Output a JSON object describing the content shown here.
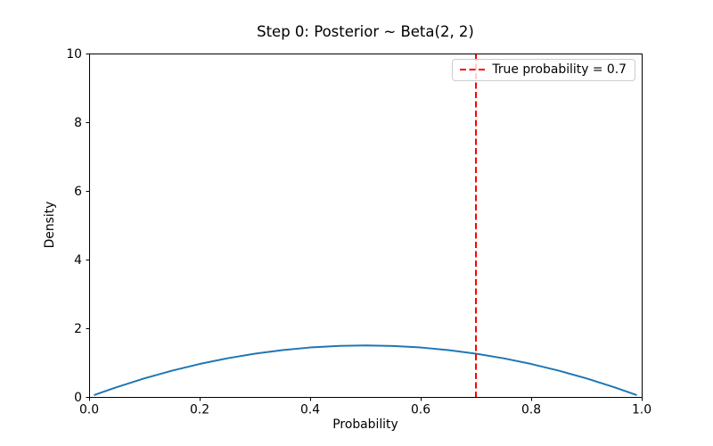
{
  "figure": {
    "background": "#ffffff",
    "spine_color": "#000000",
    "tick_color": "#000000"
  },
  "chart_data": {
    "type": "line",
    "title": "Step 0: Posterior ~ Beta(2, 2)",
    "xlabel": "Probability",
    "ylabel": "Density",
    "xlim": [
      0,
      1
    ],
    "ylim": [
      0,
      10
    ],
    "xticks": [
      0.0,
      0.2,
      0.4,
      0.6,
      0.8,
      1.0
    ],
    "xtick_labels": [
      "0.0",
      "0.2",
      "0.4",
      "0.6",
      "0.8",
      "1.0"
    ],
    "yticks": [
      0,
      2,
      4,
      6,
      8,
      10
    ],
    "ytick_labels": [
      "0",
      "2",
      "4",
      "6",
      "8",
      "10"
    ],
    "grid": false,
    "series": [
      {
        "name": "posterior-density-curve",
        "color": "#1f77b4",
        "line_style": "solid",
        "line_width": 2,
        "x": [
          0.01,
          0.05,
          0.1,
          0.15,
          0.2,
          0.25,
          0.3,
          0.35,
          0.4,
          0.45,
          0.5,
          0.55,
          0.6,
          0.65,
          0.7,
          0.75,
          0.8,
          0.85,
          0.9,
          0.95,
          0.99
        ],
        "y": [
          0.0594,
          0.285,
          0.54,
          0.765,
          0.96,
          1.125,
          1.26,
          1.365,
          1.44,
          1.485,
          1.5,
          1.485,
          1.44,
          1.365,
          1.26,
          1.125,
          0.96,
          0.765,
          0.54,
          0.285,
          0.0594
        ]
      }
    ],
    "vlines": [
      {
        "x": 0.7,
        "color": "#ff0000",
        "line_style": "dashed",
        "line_width": 2,
        "label": "True probability = 0.7"
      }
    ],
    "legend": {
      "position": "upper right",
      "entries": [
        {
          "label": "True probability = 0.7",
          "color": "#ff0000",
          "line_style": "dashed"
        }
      ]
    }
  }
}
